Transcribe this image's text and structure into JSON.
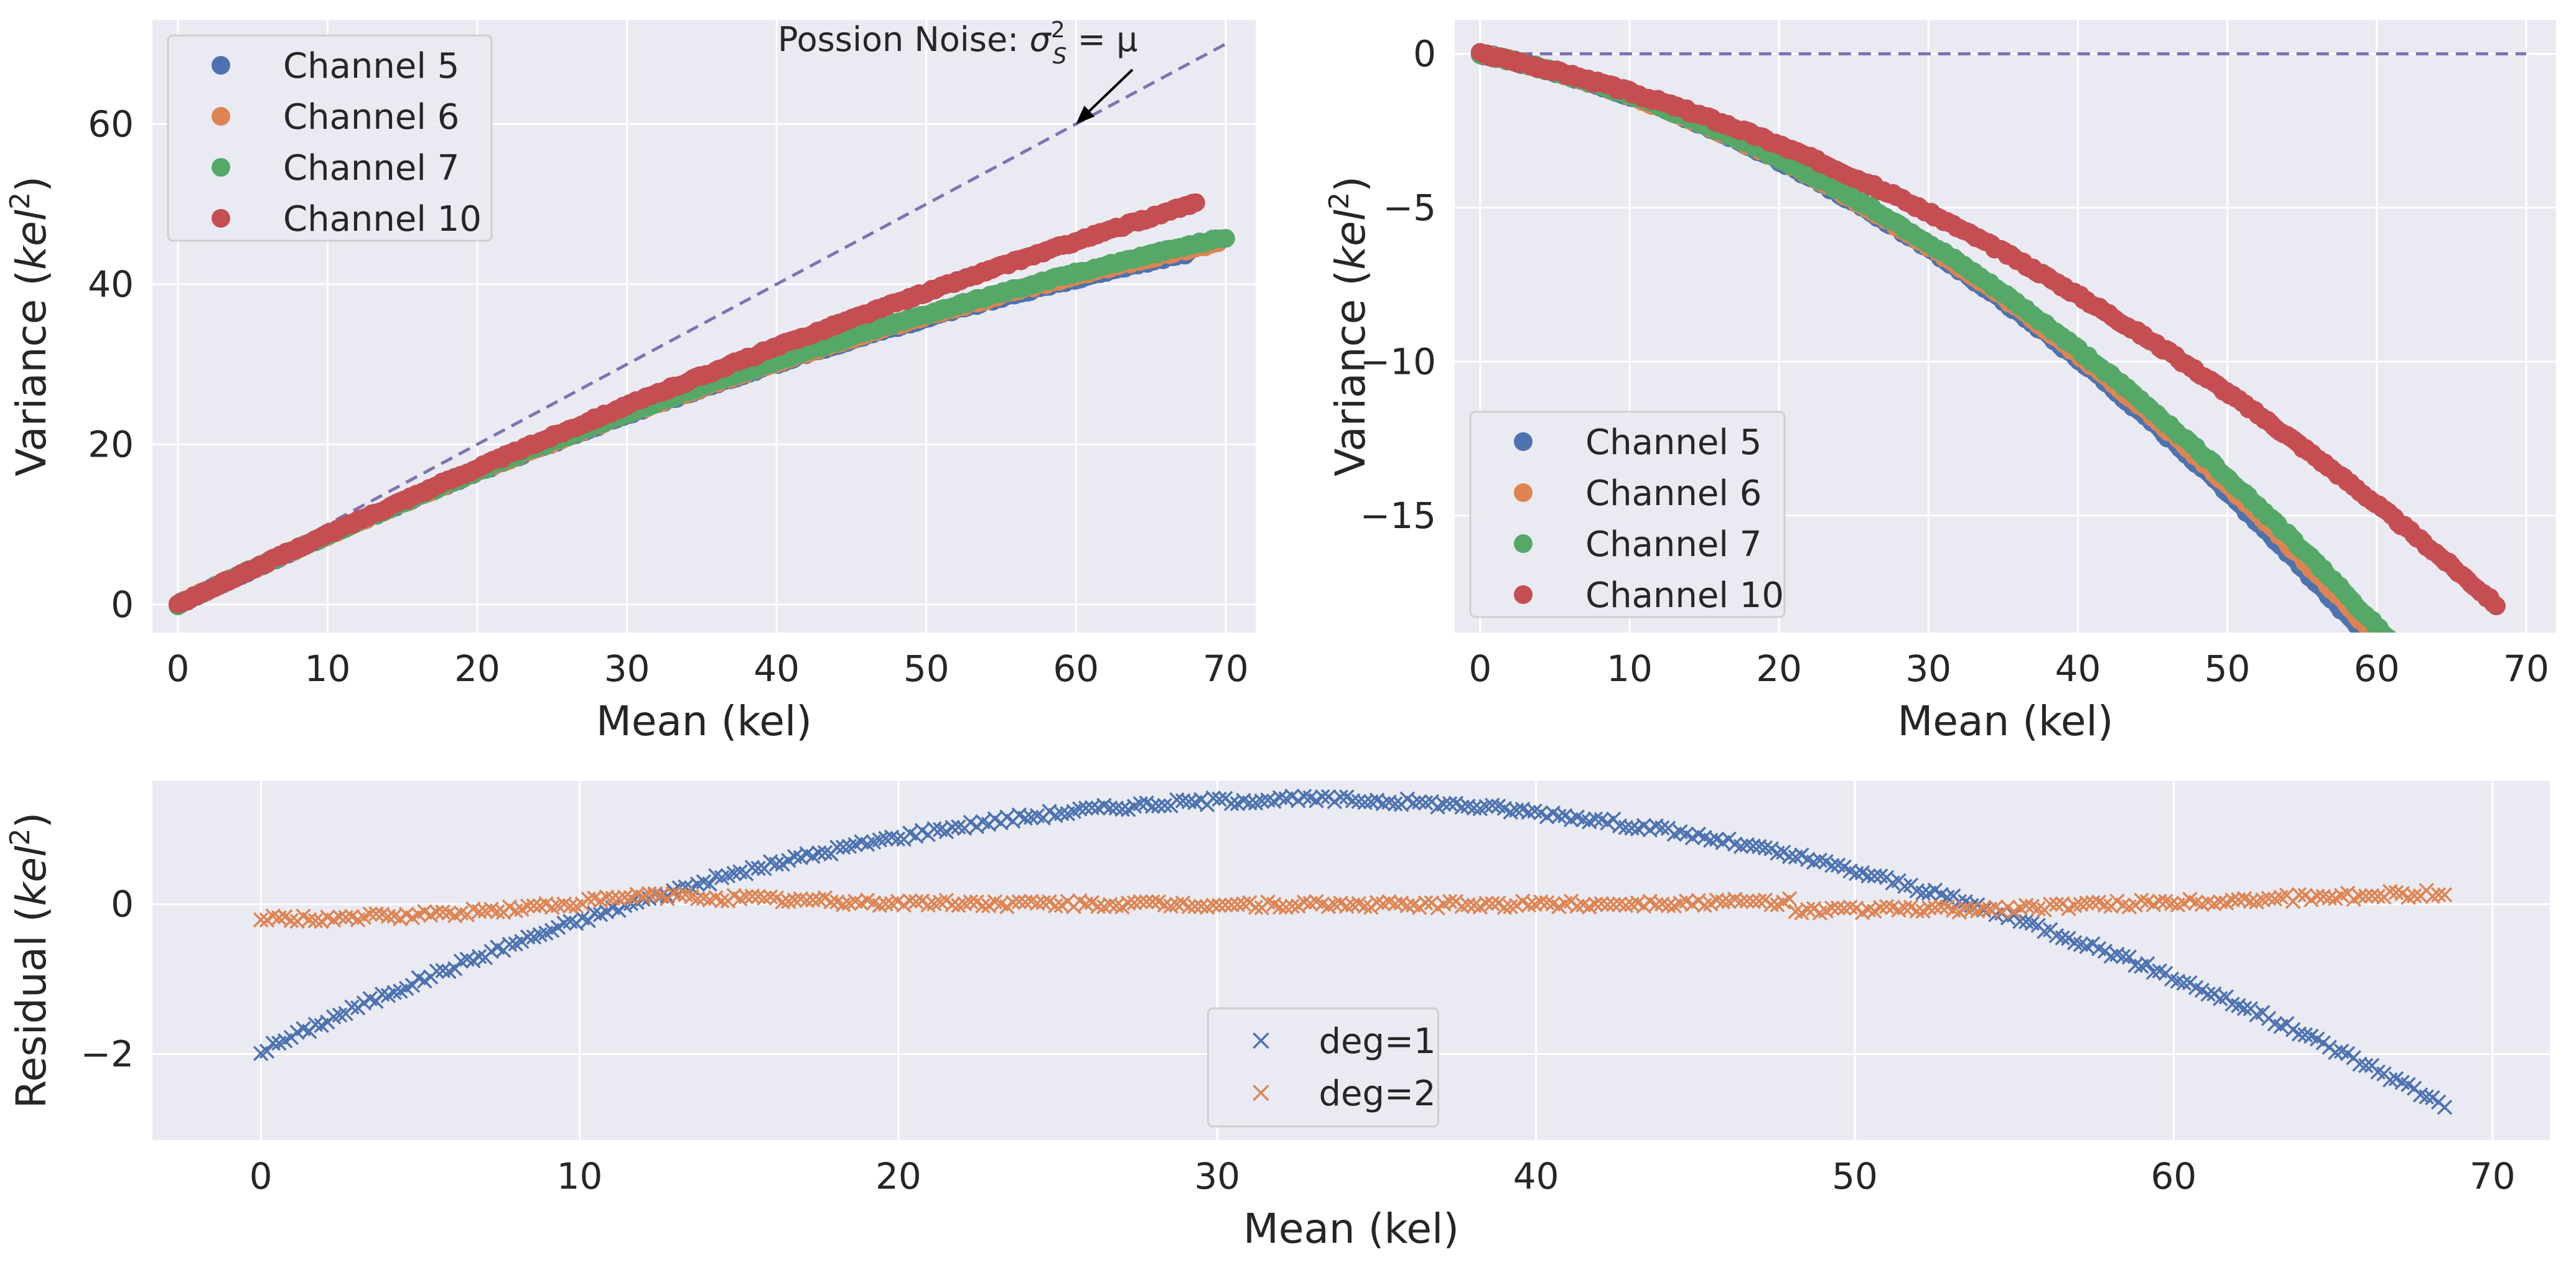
{
  "chart_data": [
    {
      "type": "scatter",
      "xlabel": "Mean (kel)",
      "ylabel_main": "Variance (",
      "ylabel_var": "kel",
      "ylabel_sup": "2",
      "ylabel_close": ")",
      "xlim": [
        -1.7,
        72
      ],
      "ylim": [
        -3.5,
        73
      ],
      "xticks": [
        0,
        10,
        20,
        30,
        40,
        50,
        60,
        70
      ],
      "yticks": [
        0,
        20,
        40,
        60
      ],
      "grid": true,
      "legend_position": "top-left",
      "annotation": {
        "prefix": "Possion Noise: ",
        "sigma": "σ",
        "sup": "2",
        "sub": "S",
        "rhs": " = μ",
        "arrow_target": [
          60,
          60
        ]
      },
      "reference_line": {
        "style": "dashed",
        "color": "#8172b2",
        "x": [
          0,
          70
        ],
        "y": [
          0,
          70
        ]
      },
      "series": [
        {
          "name": "Channel 5",
          "color": "#4c72b0",
          "a": 0.9,
          "b": -0.0037,
          "xmax": 67.5
        },
        {
          "name": "Channel 6",
          "color": "#dd8452",
          "a": 0.9,
          "b": -0.0036,
          "xmax": 69.5
        },
        {
          "name": "Channel 7",
          "color": "#55a868",
          "a": 0.9,
          "b": -0.0035,
          "xmax": 70
        },
        {
          "name": "Channel 10",
          "color": "#c44e52",
          "a": 0.9,
          "b": -0.0024,
          "xmax": 68
        }
      ]
    },
    {
      "type": "scatter",
      "xlabel": "Mean (kel)",
      "ylabel_main": "Variance (",
      "ylabel_var": "kel",
      "ylabel_sup": "2",
      "ylabel_close": ")",
      "xlim": [
        -1.7,
        72
      ],
      "ylim": [
        -18.8,
        1.1
      ],
      "xticks": [
        0,
        10,
        20,
        30,
        40,
        50,
        60,
        70
      ],
      "yticks": [
        0,
        -5,
        -10,
        -15
      ],
      "yticklabels": [
        "0",
        "−5",
        "−10",
        "−15"
      ],
      "grid": true,
      "legend_position": "lower-left",
      "reference_line": {
        "style": "dashed",
        "color": "#8172b2",
        "x": [
          0,
          70
        ],
        "y": [
          0,
          0
        ]
      },
      "series": [
        {
          "name": "Channel 5",
          "color": "#4c72b0",
          "a": -0.1,
          "b": -0.0037,
          "xmax": 67.5
        },
        {
          "name": "Channel 6",
          "color": "#dd8452",
          "a": -0.1,
          "b": -0.0036,
          "xmax": 69.5
        },
        {
          "name": "Channel 7",
          "color": "#55a868",
          "a": -0.1,
          "b": -0.0035,
          "xmax": 70
        },
        {
          "name": "Channel 10",
          "color": "#c44e52",
          "a": -0.1,
          "b": -0.0024,
          "xmax": 68
        }
      ]
    },
    {
      "type": "scatter",
      "marker": "x",
      "xlabel": "Mean (kel)",
      "ylabel_main": "Residual (",
      "ylabel_var": "kel",
      "ylabel_sup": "2",
      "ylabel_close": ")",
      "xlim": [
        -3.4,
        71.8
      ],
      "ylim": [
        -3.15,
        1.65
      ],
      "xticks": [
        0,
        10,
        20,
        30,
        40,
        50,
        60,
        70
      ],
      "yticks": [
        0,
        -2
      ],
      "yticklabels": [
        "0",
        "−2"
      ],
      "grid": true,
      "legend_position": "lower-center",
      "series": [
        {
          "name": "deg=1",
          "color": "#4c72b0",
          "curve": "parabola",
          "vertex": [
            32.6,
            1.4
          ],
          "k": -0.00317,
          "xmax": 68.5
        },
        {
          "name": "deg=2",
          "color": "#dd8452",
          "curve": "deg2",
          "xmax": 68.5
        }
      ]
    }
  ]
}
